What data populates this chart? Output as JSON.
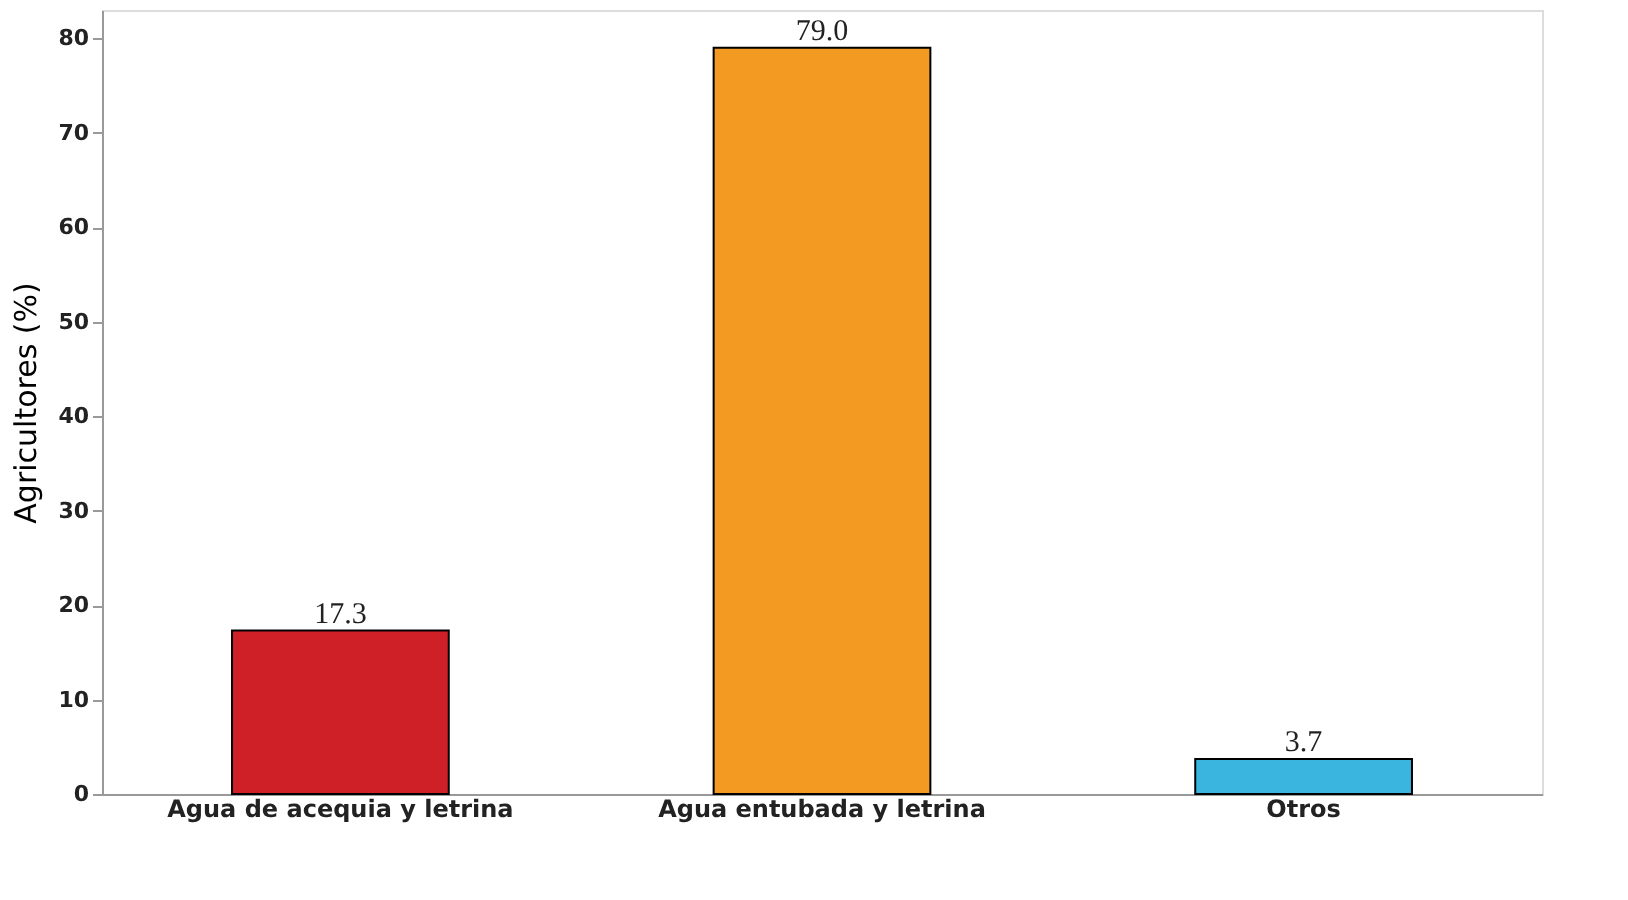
{
  "chart_data": {
    "type": "bar",
    "ylabel": "Agricultores (%)",
    "categories": [
      "Agua de acequia y letrina",
      "Agua entubada y letrina",
      "Otros"
    ],
    "values": [
      17.3,
      79.0,
      3.7
    ],
    "colors": [
      "#d02027",
      "#f39a22",
      "#39b5e0"
    ],
    "value_labels": [
      "17.3",
      "79.0",
      "3.7"
    ],
    "ylim": [
      0,
      83
    ],
    "yticks": [
      0,
      10,
      20,
      30,
      40,
      50,
      60,
      70,
      80
    ],
    "grid": false
  }
}
